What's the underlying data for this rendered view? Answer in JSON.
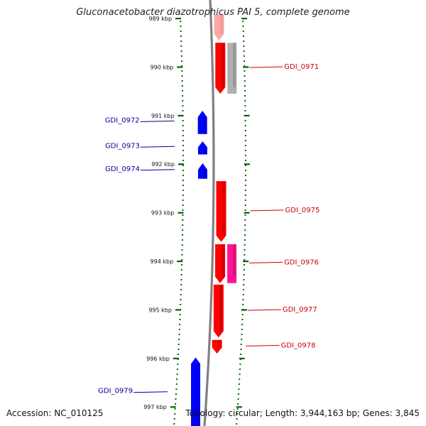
{
  "title": "Gluconacetobacter diazotrophicus PAI 5, complete genome",
  "footer": {
    "accession": "Accession: NC_010125",
    "summary": "Topology: circular; Length: 3,944,163 bp; Genes: 3,845"
  },
  "colors": {
    "forward_gene": "#ff0000",
    "reverse_gene": "#0000ff",
    "rna_gene": "#ff1493",
    "other_feature": "#b0b0b0",
    "backbone": "#808080",
    "tick": "#006400",
    "forward_label": "#cc0000",
    "reverse_label": "#000099"
  },
  "ticks": [
    {
      "kbp": 989,
      "label": "989 kbp"
    },
    {
      "kbp": 990,
      "label": "990 kbp"
    },
    {
      "kbp": 991,
      "label": "991 kbp"
    },
    {
      "kbp": 992,
      "label": "992 kbp"
    },
    {
      "kbp": 993,
      "label": "993 kbp"
    },
    {
      "kbp": 994,
      "label": "994 kbp"
    },
    {
      "kbp": 995,
      "label": "995 kbp"
    },
    {
      "kbp": 996,
      "label": "996 kbp"
    },
    {
      "kbp": 997,
      "label": "997 kbp"
    }
  ],
  "features": [
    {
      "id": "f1",
      "strand": "+",
      "kind": "gene",
      "start_kbp": 988.92,
      "end_kbp": 989.45,
      "faded": true
    },
    {
      "id": "GDI_0971",
      "strand": "+",
      "kind": "gene",
      "start_kbp": 989.5,
      "end_kbp": 990.55,
      "label": "GDI_0971"
    },
    {
      "id": "f3",
      "strand": "+",
      "kind": "other",
      "start_kbp": 989.5,
      "end_kbp": 990.55
    },
    {
      "id": "GDI_0972",
      "strand": "-",
      "kind": "gene",
      "start_kbp": 990.9,
      "end_kbp": 991.38,
      "label": "GDI_0972"
    },
    {
      "id": "GDI_0973",
      "strand": "-",
      "kind": "gene",
      "start_kbp": 991.53,
      "end_kbp": 991.8,
      "label": "GDI_0973"
    },
    {
      "id": "GDI_0974",
      "strand": "-",
      "kind": "gene",
      "start_kbp": 991.98,
      "end_kbp": 992.3,
      "label": "GDI_0974"
    },
    {
      "id": "GDI_0975",
      "strand": "+",
      "kind": "gene",
      "start_kbp": 992.35,
      "end_kbp": 993.6,
      "label": "GDI_0975"
    },
    {
      "id": "GDI_0976",
      "strand": "+",
      "kind": "gene",
      "start_kbp": 993.65,
      "end_kbp": 994.45,
      "label": "GDI_0976"
    },
    {
      "id": "f8",
      "strand": "+",
      "kind": "rna",
      "start_kbp": 993.65,
      "end_kbp": 994.45
    },
    {
      "id": "GDI_0977",
      "strand": "+",
      "kind": "gene",
      "start_kbp": 994.48,
      "end_kbp": 995.57,
      "label": "GDI_0977"
    },
    {
      "id": "GDI_0978",
      "strand": "+",
      "kind": "gene",
      "start_kbp": 995.62,
      "end_kbp": 995.9,
      "label": "GDI_0978"
    },
    {
      "id": "GDI_0979",
      "strand": "-",
      "kind": "gene",
      "start_kbp": 995.98,
      "end_kbp": 997.45,
      "label": "GDI_0979"
    }
  ]
}
